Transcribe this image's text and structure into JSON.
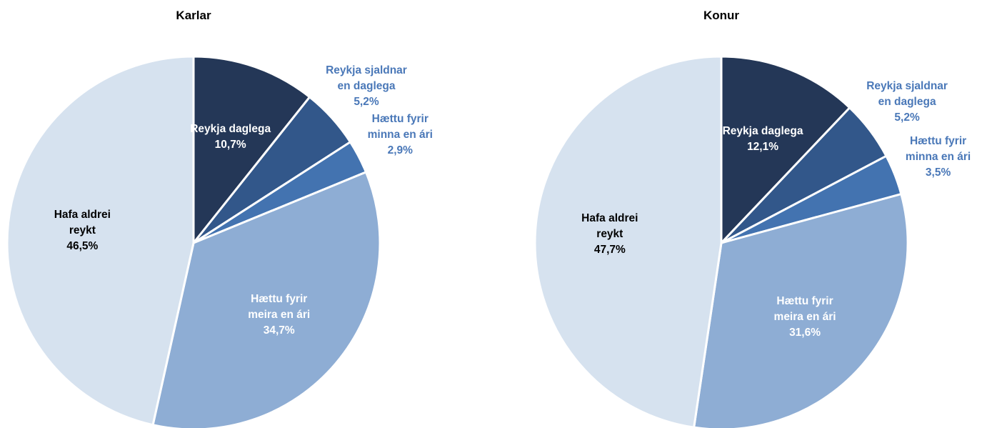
{
  "chart_data": [
    {
      "type": "pie",
      "title": "Karlar",
      "categories": [
        "Reykja daglega",
        "Reykja sjaldnar en daglega",
        "Hættu fyrir minna en ári",
        "Hættu fyrir meira en ári",
        "Hafa aldrei reykt"
      ],
      "values": [
        10.7,
        5.2,
        2.9,
        34.7,
        46.5
      ],
      "value_labels": [
        "10,7%",
        "5,2%",
        "2,9%",
        "34,7%",
        "46,5%"
      ],
      "colors": [
        "#243757",
        "#32578a",
        "#4373b0",
        "#8eadd4",
        "#d6e2ef"
      ]
    },
    {
      "type": "pie",
      "title": "Konur",
      "categories": [
        "Reykja daglega",
        "Reykja sjaldnar en daglega",
        "Hættu fyrir minna en ári",
        "Hættu fyrir meira en ári",
        "Hafa aldrei reykt"
      ],
      "values": [
        12.1,
        5.2,
        3.5,
        31.6,
        47.7
      ],
      "value_labels": [
        "12,1%",
        "5,2%",
        "3,5%",
        "31,6%",
        "47,7%"
      ],
      "colors": [
        "#243757",
        "#32578a",
        "#4373b0",
        "#8eadd4",
        "#d6e2ef"
      ]
    }
  ]
}
